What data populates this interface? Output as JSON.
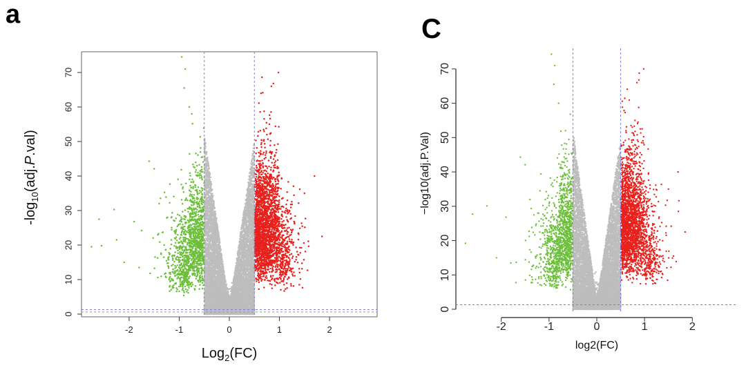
{
  "panels": [
    {
      "letter": "a"
    },
    {
      "letter": "C"
    }
  ],
  "chart_data": [
    {
      "type": "scatter",
      "title": "",
      "xlabel": {
        "base": "Log",
        "sub": "2",
        "rest": "(FC)"
      },
      "ylabel": {
        "pre": "-log",
        "sub": "10",
        "mid": "(adj.",
        "ital": "P",
        "post": ".val)"
      },
      "x_ticks": [
        -2,
        -1,
        0,
        1,
        2
      ],
      "y_ticks": [
        0,
        10,
        20,
        30,
        40,
        50,
        60,
        70
      ],
      "xlim": [
        -2.95,
        2.95
      ],
      "ylim": [
        -0.8,
        76
      ],
      "fc_threshold": [
        -0.5,
        0.5
      ],
      "p_threshold": 1.3,
      "colors": {
        "up": "#e8211c",
        "down": "#6cbf3a",
        "ns": "#bdbdbd",
        "threshold": "#7a7adb"
      },
      "series": [
        {
          "name": "down",
          "points": [
            [
              -2.75,
              19.5
            ],
            [
              -2.6,
              27.5
            ],
            [
              -2.55,
              19.8
            ],
            [
              -2.3,
              30.3
            ],
            [
              -2.25,
              21.5
            ],
            [
              -2.1,
              15
            ],
            [
              -1.9,
              26.8
            ],
            [
              -1.8,
              13.5
            ],
            [
              -1.75,
              24.2
            ],
            [
              -1.6,
              44.3
            ],
            [
              -1.5,
              42.1
            ],
            [
              -1.4,
              32
            ],
            [
              -1.3,
              20
            ],
            [
              -1.2,
              10
            ],
            [
              -0.95,
              74.5
            ],
            [
              -0.9,
              65.5
            ],
            [
              -0.88,
              71
            ],
            [
              -0.8,
              60
            ],
            [
              -0.75,
              58
            ]
          ],
          "count_approx": 1300
        },
        {
          "name": "up",
          "points": [
            [
              1.85,
              22.5
            ],
            [
              1.7,
              40
            ],
            [
              1.5,
              35
            ],
            [
              1.3,
              26.5
            ],
            [
              1.2,
              30
            ],
            [
              1.1,
              20
            ],
            [
              0.98,
              70
            ],
            [
              0.88,
              66.8
            ],
            [
              0.84,
              66
            ],
            [
              0.8,
              55
            ],
            [
              0.75,
              52
            ],
            [
              0.7,
              45
            ]
          ],
          "count_approx": 2500
        },
        {
          "name": "ns",
          "points": [],
          "count_approx": 9000
        }
      ]
    },
    {
      "type": "scatter",
      "title": "",
      "xlabel": {
        "base": "log2(FC)"
      },
      "ylabel": {
        "pre": "−log10(adj.P.Val)"
      },
      "x_ticks": [
        -2,
        -1,
        0,
        1,
        2
      ],
      "y_ticks": [
        0,
        10,
        20,
        30,
        40,
        50,
        60,
        70
      ],
      "xlim": [
        -2.95,
        2.95
      ],
      "ylim": [
        -0.8,
        76
      ],
      "fc_threshold": [
        -0.5,
        0.5
      ],
      "p_threshold": 1.3,
      "colors": {
        "up": "#e8211c",
        "down": "#6cbf3a",
        "ns": "#bdbdbd",
        "threshold": "#7a7adb"
      },
      "series": [
        {
          "name": "down",
          "points": [
            [
              -2.75,
              19.2
            ],
            [
              -2.6,
              27.7
            ],
            [
              -2.3,
              30.1
            ],
            [
              -2.1,
              15
            ],
            [
              -1.9,
              26.8
            ],
            [
              -1.8,
              13.5
            ],
            [
              -1.6,
              44.3
            ],
            [
              -1.5,
              42.1
            ],
            [
              -1.4,
              32
            ],
            [
              -0.95,
              74.3
            ],
            [
              -0.9,
              65.5
            ],
            [
              -0.88,
              71
            ],
            [
              -0.8,
              60
            ]
          ],
          "count_approx": 1300
        },
        {
          "name": "up",
          "points": [
            [
              1.85,
              22.5
            ],
            [
              1.7,
              40
            ],
            [
              1.5,
              35
            ],
            [
              1.3,
              26.5
            ],
            [
              0.98,
              70
            ],
            [
              0.88,
              66.8
            ],
            [
              0.84,
              66
            ],
            [
              0.8,
              55
            ]
          ],
          "count_approx": 2500
        },
        {
          "name": "ns",
          "points": [],
          "count_approx": 9000
        }
      ]
    }
  ]
}
